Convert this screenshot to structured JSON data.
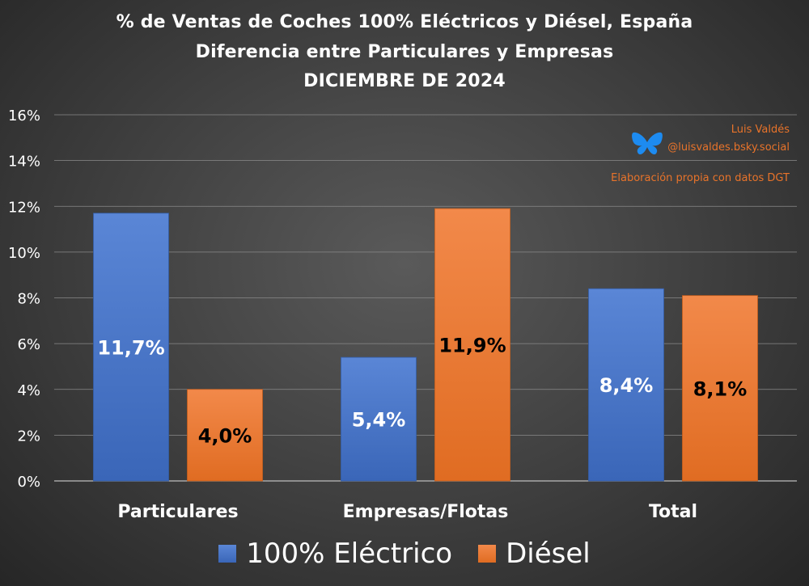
{
  "header": {
    "title": "% de Ventas de Coches 100% Eléctricos y Diésel, España",
    "subtitle": "Diferencia entre Particulares y Empresas",
    "date": "DICIEMBRE DE 2024"
  },
  "credits": {
    "author": "Luis Valdés",
    "handle": "@luisvaldes.bsky.social",
    "source": "Elaboración propia con datos DGT",
    "icon": "bluesky-butterfly-icon"
  },
  "colors": {
    "electric": "#4472c4",
    "diesel": "#ed7d31",
    "grid": "#8a8a8a",
    "text": "#ffffff",
    "credit": "#e8732a"
  },
  "chart_data": {
    "type": "bar",
    "title": "% de Ventas de Coches 100% Eléctricos y Diésel, España",
    "subtitle": "Diferencia entre Particulares y Empresas — DICIEMBRE DE 2024",
    "categories": [
      "Particulares",
      "Empresas/Flotas",
      "Total"
    ],
    "series": [
      {
        "name": "100% Eléctrico",
        "values": [
          11.7,
          5.4,
          8.4
        ],
        "labels": [
          "11,7%",
          "5,4%",
          "8,4%"
        ]
      },
      {
        "name": "Diésel",
        "values": [
          4.0,
          11.9,
          8.1
        ],
        "labels": [
          "4,0%",
          "11,9%",
          "8,1%"
        ]
      }
    ],
    "ylim": [
      0,
      16
    ],
    "yticks": [
      0,
      2,
      4,
      6,
      8,
      10,
      12,
      14,
      16
    ],
    "ytick_labels": [
      "0%",
      "2%",
      "4%",
      "6%",
      "8%",
      "10%",
      "12%",
      "14%",
      "16%"
    ],
    "xlabel": "",
    "ylabel": "",
    "grid": true,
    "legend": "bottom"
  }
}
